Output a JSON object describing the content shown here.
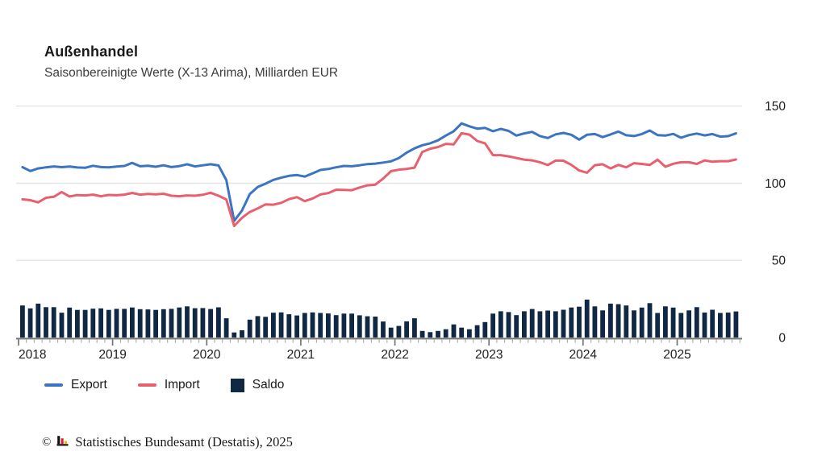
{
  "header": {
    "title": "Außenhandel",
    "subtitle": "Saisonbereinigte Werte (X-13 Arima), Milliarden EUR"
  },
  "legend": {
    "export_label": "Export",
    "import_label": "Import",
    "saldo_label": "Saldo"
  },
  "footer": {
    "copyright": "©",
    "logo": "destatis-bars-logo",
    "text": "Statistisches Bundesamt (Destatis), 2025"
  },
  "colors": {
    "export": "#3b74c1",
    "import": "#e85f6e",
    "saldo": "#102844",
    "gridline": "#e4e4e4",
    "axis": "#737373",
    "month_tick": "#aaaaaa",
    "text": "#202020"
  },
  "chart_data": {
    "type": "combo",
    "title": "Außenhandel",
    "unit": "Milliarden EUR",
    "frequency": "monthly",
    "x_range": [
      "2018-01",
      "2025-08"
    ],
    "x_tick_labels": [
      "2018",
      "2019",
      "2020",
      "2021",
      "2022",
      "2023",
      "2024",
      "2025"
    ],
    "y_ticks": [
      0,
      50,
      100,
      150
    ],
    "ylim": [
      0,
      150
    ],
    "grid": true,
    "legend_position": "bottom",
    "series": [
      {
        "name": "Export",
        "type": "line",
        "color": "#3b74c1",
        "values": [
          110.4,
          107.9,
          109.6,
          110.3,
          110.9,
          110.4,
          110.8,
          110.2,
          110.0,
          111.3,
          110.5,
          110.3,
          110.8,
          111.2,
          113.2,
          111.0,
          111.3,
          110.7,
          111.6,
          110.5,
          111.1,
          112.3,
          110.9,
          111.6,
          112.3,
          111.5,
          102.0,
          75.6,
          82.3,
          93.0,
          97.6,
          99.7,
          102.2,
          103.6,
          104.8,
          105.3,
          104.3,
          106.4,
          108.6,
          109.2,
          110.3,
          111.2,
          111.0,
          111.6,
          112.4,
          112.7,
          113.4,
          114.2,
          116.3,
          119.8,
          122.6,
          124.6,
          125.9,
          127.8,
          130.9,
          133.7,
          138.8,
          136.9,
          135.4,
          135.9,
          133.7,
          135.2,
          133.9,
          130.9,
          132.3,
          133.3,
          130.6,
          129.3,
          131.7,
          132.6,
          131.4,
          128.3,
          131.4,
          131.9,
          129.9,
          131.6,
          133.5,
          131.1,
          130.6,
          131.9,
          134.2,
          131.2,
          130.9,
          132.0,
          129.5,
          131.2,
          132.2,
          131.0,
          131.9,
          130.2,
          130.5,
          132.3
        ]
      },
      {
        "name": "Import",
        "type": "line",
        "color": "#e85f6e",
        "values": [
          89.6,
          89.0,
          87.6,
          90.6,
          91.2,
          94.3,
          91.4,
          92.3,
          92.1,
          92.6,
          91.6,
          92.4,
          92.2,
          92.6,
          93.7,
          92.6,
          93.1,
          92.8,
          93.2,
          91.9,
          91.6,
          92.1,
          91.9,
          92.5,
          93.8,
          91.9,
          89.5,
          72.3,
          77.6,
          81.4,
          83.7,
          86.3,
          86.1,
          87.3,
          89.7,
          91.0,
          88.4,
          90.1,
          92.7,
          93.6,
          95.8,
          95.7,
          95.5,
          97.2,
          98.6,
          99.1,
          103.0,
          107.8,
          108.8,
          109.3,
          110.1,
          120.3,
          122.4,
          123.5,
          125.5,
          125.2,
          132.4,
          131.5,
          127.4,
          125.9,
          118.2,
          118.2,
          117.4,
          116.4,
          115.3,
          114.8,
          113.6,
          111.8,
          114.7,
          114.6,
          111.9,
          108.3,
          106.8,
          111.7,
          112.3,
          109.6,
          111.9,
          110.3,
          113.0,
          112.5,
          111.9,
          115.3,
          110.7,
          112.6,
          113.6,
          113.6,
          112.5,
          114.8,
          113.9,
          114.3,
          114.3,
          115.4
        ]
      },
      {
        "name": "Saldo",
        "type": "bar",
        "color": "#102844",
        "values": [
          20.8,
          18.9,
          22.0,
          19.7,
          19.7,
          16.1,
          19.4,
          17.9,
          17.9,
          18.7,
          18.9,
          17.9,
          18.6,
          18.6,
          19.5,
          18.4,
          18.2,
          17.9,
          18.4,
          18.6,
          19.5,
          20.2,
          19.0,
          19.1,
          18.5,
          19.6,
          12.5,
          3.3,
          4.7,
          11.6,
          13.9,
          13.4,
          16.1,
          16.3,
          15.1,
          14.3,
          15.9,
          16.3,
          15.9,
          15.6,
          14.5,
          15.5,
          15.5,
          14.4,
          13.8,
          13.6,
          10.4,
          6.4,
          7.5,
          10.5,
          12.5,
          4.3,
          3.5,
          4.3,
          5.4,
          8.5,
          6.4,
          5.4,
          8.0,
          10.0,
          15.5,
          17.0,
          16.5,
          14.5,
          17.0,
          18.5,
          17.0,
          17.5,
          17.0,
          18.0,
          19.5,
          20.0,
          24.6,
          20.2,
          17.6,
          22.0,
          21.6,
          20.8,
          17.6,
          19.4,
          22.3,
          15.9,
          20.2,
          19.4,
          15.9,
          17.6,
          19.7,
          16.2,
          18.0,
          15.9,
          16.2,
          16.9
        ]
      }
    ]
  }
}
